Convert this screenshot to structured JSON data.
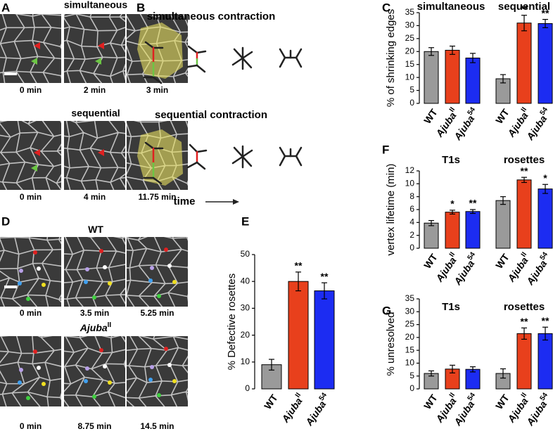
{
  "panel_labels": [
    "A",
    "B",
    "C",
    "D",
    "E",
    "F",
    "G"
  ],
  "panel_a": {
    "rows": [
      {
        "title": "simultaneous",
        "times": [
          "0 min",
          "2 min",
          "3 min"
        ]
      },
      {
        "title": "sequential",
        "times": [
          "0 min",
          "4 min",
          "11.75 min"
        ]
      }
    ]
  },
  "panel_b": {
    "rows": [
      "simultaneous contraction",
      "sequential contraction"
    ],
    "time_label": "time"
  },
  "panel_d": {
    "rows": [
      {
        "title": "WT",
        "times": [
          "0 min",
          "3.5 min",
          "5.25 min"
        ]
      },
      {
        "title": "Ajuba",
        "title_superscript": "II",
        "times": [
          "0 min",
          "8.75 min",
          "14.5 min"
        ]
      }
    ]
  },
  "chart_data": [
    {
      "type": "bar",
      "ylabel": "% of shrinking edges",
      "ylim": [
        0,
        35
      ],
      "yticks": [
        0,
        5,
        10,
        15,
        20,
        25,
        30,
        35
      ],
      "categories": [
        "WT",
        "Ajuba",
        "Ajuba"
      ],
      "category_superscripts": [
        null,
        "II",
        "54"
      ],
      "colors": [
        "#9a9a9a",
        "#e8401c",
        "#1c2cf2"
      ],
      "groups": [
        {
          "name": "simultaneous",
          "values": [
            20,
            20.5,
            17.5
          ],
          "errors": [
            1.5,
            1.6,
            1.8
          ],
          "annotations": [
            null,
            null,
            null
          ]
        },
        {
          "name": "sequential",
          "values": [
            9.5,
            31,
            30.8
          ],
          "errors": [
            1.6,
            3,
            1.6
          ],
          "annotations": [
            null,
            "**",
            "**"
          ]
        }
      ]
    },
    {
      "type": "bar",
      "ylabel": "% Defective rosettes",
      "ylim": [
        0,
        50
      ],
      "yticks": [
        0,
        10,
        20,
        30,
        40,
        50
      ],
      "categories": [
        "WT",
        "Ajuba",
        "Ajuba"
      ],
      "category_superscripts": [
        null,
        "II",
        "54"
      ],
      "colors": [
        "#9a9a9a",
        "#e8401c",
        "#1c2cf2"
      ],
      "groups": [
        {
          "values": [
            9,
            40,
            36.5
          ],
          "errors": [
            2,
            3.5,
            3
          ],
          "annotations": [
            null,
            "**",
            "**"
          ]
        }
      ]
    },
    {
      "type": "bar",
      "ylabel": "vertex lifetime (min)",
      "ylim": [
        0,
        12
      ],
      "yticks": [
        0,
        2,
        4,
        6,
        8,
        10,
        12
      ],
      "categories": [
        "WT",
        "Ajuba",
        "Ajuba"
      ],
      "category_superscripts": [
        null,
        "II",
        "54"
      ],
      "colors": [
        "#9a9a9a",
        "#e8401c",
        "#1c2cf2"
      ],
      "groups": [
        {
          "name": "T1s",
          "values": [
            3.9,
            5.6,
            5.7
          ],
          "errors": [
            0.4,
            0.3,
            0.3
          ],
          "annotations": [
            null,
            "*",
            "**"
          ]
        },
        {
          "name": "rosettes",
          "values": [
            7.4,
            10.6,
            9.2
          ],
          "errors": [
            0.6,
            0.4,
            0.7
          ],
          "annotations": [
            null,
            "**",
            "*"
          ]
        }
      ]
    },
    {
      "type": "bar",
      "ylabel": "% unresolved",
      "ylim": [
        0,
        35
      ],
      "yticks": [
        0,
        5,
        10,
        15,
        20,
        25,
        30,
        35
      ],
      "categories": [
        "WT",
        "Ajuba",
        "Ajuba"
      ],
      "category_superscripts": [
        null,
        "II",
        "54"
      ],
      "colors": [
        "#9a9a9a",
        "#e8401c",
        "#1c2cf2"
      ],
      "groups": [
        {
          "name": "T1s",
          "values": [
            6,
            7.7,
            7.6
          ],
          "errors": [
            1,
            1.5,
            1
          ],
          "annotations": [
            null,
            null,
            null
          ]
        },
        {
          "name": "rosettes",
          "values": [
            6,
            21.5,
            21.5
          ],
          "errors": [
            1.8,
            2.2,
            2.5
          ],
          "annotations": [
            null,
            "**",
            "**"
          ]
        }
      ]
    }
  ]
}
